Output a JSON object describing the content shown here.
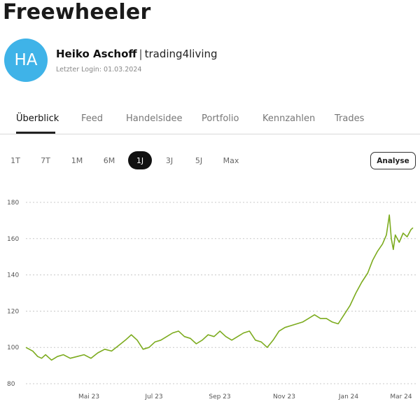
{
  "page": {
    "title": "Freewheeler"
  },
  "profile": {
    "avatar_initials": "HA",
    "avatar_color": "#3fb3e8",
    "name": "Heiko Aschoff",
    "separator": "|",
    "handle": "trading4living",
    "last_login": "Letzter Login: 01.03.2024"
  },
  "tabs": [
    {
      "label": "Überblick",
      "active": true
    },
    {
      "label": "Feed"
    },
    {
      "label": "Handelsidee"
    },
    {
      "label": "Portfolio"
    },
    {
      "label": "Kennzahlen"
    },
    {
      "label": "Trades"
    }
  ],
  "ranges": [
    {
      "label": "1T"
    },
    {
      "label": "7T"
    },
    {
      "label": "1M"
    },
    {
      "label": "6M"
    },
    {
      "label": "1J",
      "active": true
    },
    {
      "label": "3J"
    },
    {
      "label": "5J"
    },
    {
      "label": "Max"
    }
  ],
  "analyse_button": "Analyse",
  "chart_data": {
    "type": "line",
    "line_color": "#7cab1e",
    "grid": "dotted horizontal",
    "ylim": [
      80,
      180
    ],
    "y_ticks": [
      180,
      160,
      140,
      120,
      100,
      80
    ],
    "x_ticks": [
      "Mai 23",
      "Jul 23",
      "Sep 23",
      "Nov 23",
      "Jan 24",
      "Mar 24"
    ],
    "xlim": [
      "2023-03-01",
      "2024-03-28"
    ],
    "series": [
      {
        "x": [
          "2023-03-01",
          "2023-03-08",
          "2023-03-13",
          "2023-03-17",
          "2023-03-21",
          "2023-03-27",
          "2023-04-02",
          "2023-04-08",
          "2023-04-15",
          "2023-04-22",
          "2023-04-29",
          "2023-05-06",
          "2023-05-13",
          "2023-05-20",
          "2023-05-27",
          "2023-06-03",
          "2023-06-10",
          "2023-06-16",
          "2023-06-22",
          "2023-06-28",
          "2023-07-04",
          "2023-07-10",
          "2023-07-16",
          "2023-07-22",
          "2023-07-28",
          "2023-08-03",
          "2023-08-09",
          "2023-08-15",
          "2023-08-21",
          "2023-08-27",
          "2023-09-02",
          "2023-09-08",
          "2023-09-14",
          "2023-09-20",
          "2023-09-26",
          "2023-10-02",
          "2023-10-08",
          "2023-10-14",
          "2023-10-20",
          "2023-10-26",
          "2023-11-01",
          "2023-11-07",
          "2023-11-13",
          "2023-11-19",
          "2023-11-25",
          "2023-12-01",
          "2023-12-07",
          "2023-12-13",
          "2023-12-19",
          "2023-12-25",
          "2023-12-31",
          "2024-01-06",
          "2024-01-12",
          "2024-01-18",
          "2024-01-24",
          "2024-01-30",
          "2024-02-05",
          "2024-02-11",
          "2024-02-16",
          "2024-02-21",
          "2024-02-26",
          "2024-03-01",
          "2024-03-04",
          "2024-03-06",
          "2024-03-08",
          "2024-03-10",
          "2024-03-14",
          "2024-03-18",
          "2024-03-22",
          "2024-03-26",
          "2024-03-28"
        ],
        "y": [
          100,
          98,
          95,
          94,
          96,
          93,
          95,
          96,
          94,
          95,
          96,
          94,
          97,
          99,
          98,
          101,
          104,
          107,
          104,
          99,
          100,
          103,
          104,
          106,
          108,
          109,
          106,
          105,
          102,
          104,
          107,
          106,
          109,
          106,
          104,
          106,
          108,
          109,
          104,
          103,
          100,
          104,
          109,
          111,
          112,
          113,
          114,
          116,
          118,
          116,
          116,
          114,
          113,
          118,
          123,
          130,
          136,
          141,
          148,
          153,
          157,
          162,
          173,
          160,
          154,
          162,
          158,
          163,
          161,
          165,
          166
        ]
      }
    ]
  }
}
